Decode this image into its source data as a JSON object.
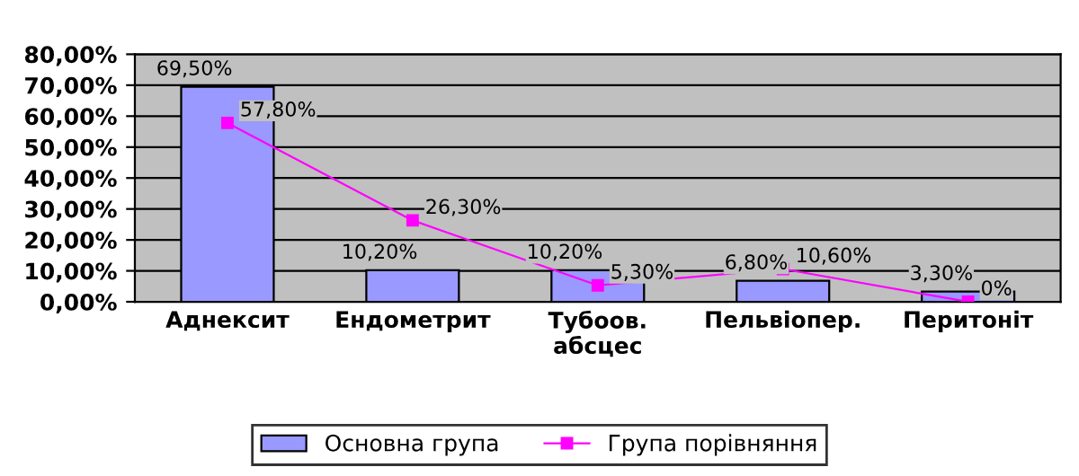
{
  "chart_data": {
    "type": "bar",
    "categories": [
      "Аднексит",
      "Ендометрит",
      "Тубоов.\nабсцес",
      "Пельвіопер.",
      "Перитоніт"
    ],
    "series": [
      {
        "name": "Основна група",
        "color": "#9999ff",
        "values": [
          69.5,
          10.2,
          10.2,
          6.8,
          3.3
        ],
        "value_labels": [
          "69,50%",
          "10,20%",
          "10,20%",
          "6,80%",
          "3,30%"
        ]
      },
      {
        "name": "Група порівняння",
        "type": "line",
        "color": "#ff00ff",
        "marker": "square",
        "values": [
          57.8,
          26.3,
          5.3,
          10.6,
          0
        ],
        "value_labels": [
          "57,80%",
          "26,30%",
          "5,30%",
          "10,60%",
          "0%"
        ]
      }
    ],
    "ylim": [
      0,
      80
    ],
    "yticks": [
      {
        "value": 0,
        "label": "0,00%"
      },
      {
        "value": 10,
        "label": "10,00%"
      },
      {
        "value": 20,
        "label": "20,00%"
      },
      {
        "value": 30,
        "label": "30,00%"
      },
      {
        "value": 40,
        "label": "40,00%"
      },
      {
        "value": 50,
        "label": "50,00%"
      },
      {
        "value": 60,
        "label": "60,00%"
      },
      {
        "value": 70,
        "label": "70,00%"
      },
      {
        "value": 80,
        "label": "80,00%"
      }
    ],
    "grid": "y",
    "legend": "bottom"
  }
}
